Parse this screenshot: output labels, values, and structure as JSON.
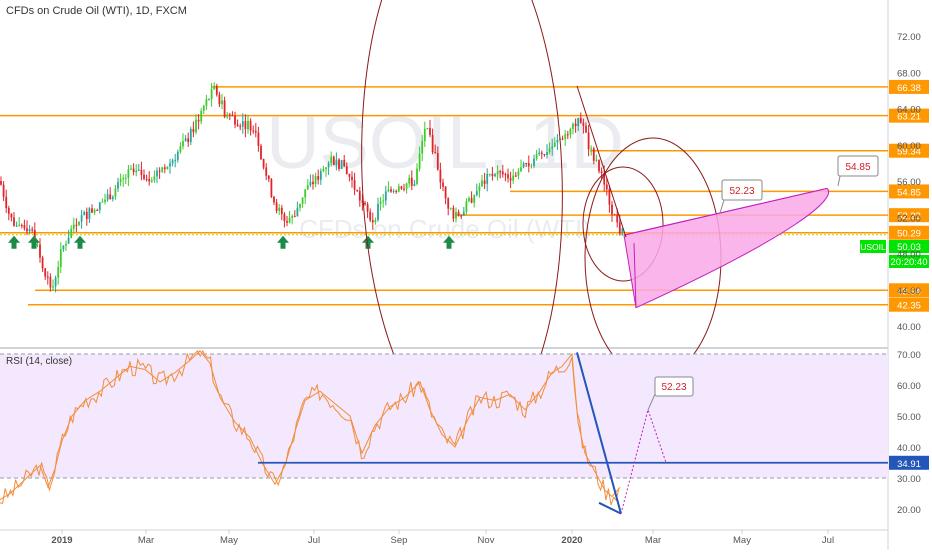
{
  "header": {
    "title": "CFDs on Crude Oil (WTI), 1D, FXCM"
  },
  "watermark": {
    "symbol": "USOIL, 1D",
    "description": "CFDs on Crude Oil (WTI)"
  },
  "symbol_badge": {
    "label": "USOIL",
    "value": "50.03"
  },
  "countdown": "20:20:40",
  "colors": {
    "up": "#26a69a",
    "up_bright": "#3ccc2a",
    "down": "#e0242c",
    "level": "#ff9800",
    "ellipse": "#8b1a1a",
    "fan_fill": "#f9a8e6",
    "fan_stroke": "#c020c0",
    "rsi_line": "#f28d3c",
    "rsi_bg": "#f3e8fd",
    "trend_blue": "#2356b8",
    "badge_green": "#00e500",
    "arrow_green": "#1e8a4a"
  },
  "chart_data": [
    {
      "type": "candlestick",
      "title": "CFDs on Crude Oil (WTI), 1D, FXCM",
      "x_tick_labels": [
        "2019",
        "Mar",
        "May",
        "Jul",
        "Sep",
        "Nov",
        "2020",
        "Mar",
        "May",
        "Jul"
      ],
      "y_tick_labels": [
        "72.00",
        "68.00",
        "64.00",
        "60.00",
        "56.00",
        "52.00",
        "48.00",
        "44.00",
        "40.00"
      ],
      "ylim": [
        38.5,
        77
      ],
      "price_path": [
        [
          0,
          56
        ],
        [
          10,
          52
        ],
        [
          20,
          50.5
        ],
        [
          30,
          51
        ],
        [
          45,
          46
        ],
        [
          52,
          44
        ],
        [
          62,
          48.5
        ],
        [
          75,
          51.5
        ],
        [
          95,
          53
        ],
        [
          115,
          55
        ],
        [
          130,
          57
        ],
        [
          150,
          56.5
        ],
        [
          170,
          58
        ],
        [
          190,
          61
        ],
        [
          205,
          64.5
        ],
        [
          215,
          66.2
        ],
        [
          225,
          63.5
        ],
        [
          240,
          62.5
        ],
        [
          255,
          62
        ],
        [
          265,
          57
        ],
        [
          275,
          53.5
        ],
        [
          285,
          51.5
        ],
        [
          295,
          52.5
        ],
        [
          305,
          55
        ],
        [
          315,
          56
        ],
        [
          330,
          58.5
        ],
        [
          345,
          57.5
        ],
        [
          360,
          54
        ],
        [
          372,
          51.5
        ],
        [
          385,
          54.5
        ],
        [
          400,
          55.5
        ],
        [
          415,
          56
        ],
        [
          425,
          62
        ],
        [
          435,
          59
        ],
        [
          445,
          54
        ],
        [
          455,
          52
        ],
        [
          465,
          53
        ],
        [
          480,
          55.5
        ],
        [
          495,
          57
        ],
        [
          510,
          56.5
        ],
        [
          525,
          57.5
        ],
        [
          540,
          59
        ],
        [
          555,
          60
        ],
        [
          570,
          62
        ],
        [
          580,
          63
        ],
        [
          590,
          59.5
        ],
        [
          600,
          57
        ],
        [
          610,
          53.5
        ],
        [
          620,
          50.5
        ],
        [
          625,
          50.03
        ]
      ],
      "horizontal_levels": [
        66.38,
        63.21,
        59.34,
        54.85,
        52.23,
        50.29,
        43.94,
        42.35
      ],
      "level_labels": [
        "66.38",
        "63.21",
        "59.34",
        "54.85",
        "52.23",
        "50.29",
        "43.94",
        "42.35"
      ],
      "support_line": 50.29,
      "support_arrows_x_dates": [
        "Nov 2018",
        "Dec 2018",
        "Jan 2019",
        "Jun 2019",
        "Aug 2019",
        "Oct 2019"
      ],
      "current_price": 50.03,
      "annotations": [
        {
          "text": "52.23",
          "kind": "callout"
        },
        {
          "text": "54.85",
          "kind": "callout"
        }
      ]
    },
    {
      "type": "line",
      "title": "RSI (14, close)",
      "y_tick_labels": [
        "70.00",
        "60.00",
        "50.00",
        "40.00",
        "30.00",
        "20.00"
      ],
      "ylim": [
        18,
        71
      ],
      "bands": [
        30,
        70
      ],
      "values_path": [
        [
          0,
          23
        ],
        [
          10,
          25
        ],
        [
          20,
          28
        ],
        [
          30,
          31
        ],
        [
          40,
          34
        ],
        [
          48,
          27
        ],
        [
          55,
          33
        ],
        [
          62,
          42
        ],
        [
          72,
          50
        ],
        [
          85,
          55
        ],
        [
          100,
          58
        ],
        [
          115,
          62
        ],
        [
          130,
          66
        ],
        [
          145,
          65
        ],
        [
          160,
          61
        ],
        [
          175,
          64
        ],
        [
          190,
          68
        ],
        [
          200,
          71
        ],
        [
          210,
          67
        ],
        [
          220,
          56
        ],
        [
          235,
          48
        ],
        [
          250,
          43
        ],
        [
          262,
          35
        ],
        [
          275,
          28
        ],
        [
          285,
          34
        ],
        [
          295,
          45
        ],
        [
          305,
          55
        ],
        [
          320,
          58
        ],
        [
          335,
          54
        ],
        [
          350,
          50
        ],
        [
          362,
          38
        ],
        [
          375,
          47
        ],
        [
          390,
          53
        ],
        [
          405,
          56
        ],
        [
          420,
          61
        ],
        [
          430,
          52
        ],
        [
          442,
          44
        ],
        [
          455,
          40
        ],
        [
          468,
          49
        ],
        [
          480,
          56
        ],
        [
          495,
          55
        ],
        [
          510,
          57
        ],
        [
          525,
          52
        ],
        [
          540,
          58
        ],
        [
          552,
          64
        ],
        [
          562,
          66
        ],
        [
          572,
          70
        ],
        [
          578,
          48
        ],
        [
          585,
          38
        ],
        [
          595,
          32
        ],
        [
          605,
          26
        ],
        [
          612,
          24
        ],
        [
          620,
          27
        ]
      ],
      "current_value": 34.91,
      "current_label": "34.91",
      "annotation": {
        "text": "52.23"
      }
    }
  ]
}
